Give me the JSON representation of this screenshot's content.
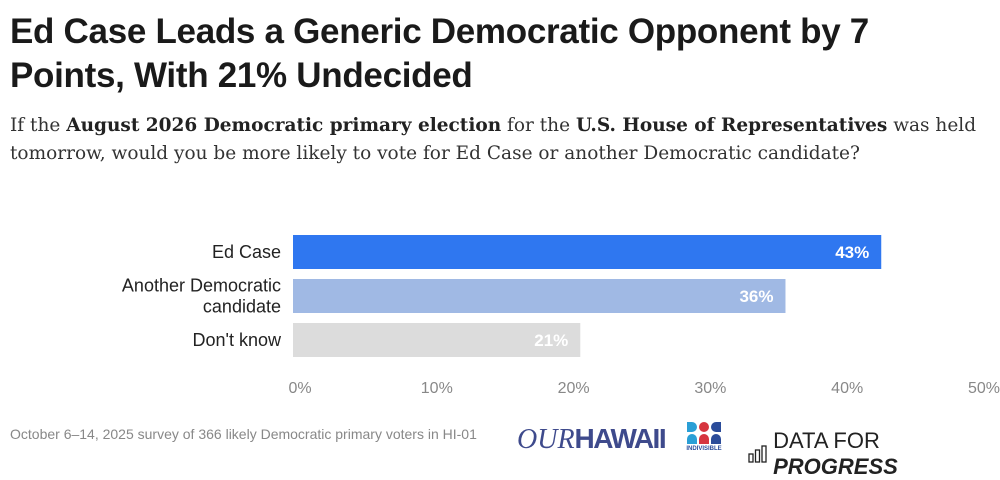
{
  "title": "Ed Case Leads a Generic Democratic Opponent by 7 Points, With 21% Undecided",
  "subtitle": {
    "parts": [
      {
        "text": "If the ",
        "bold": false
      },
      {
        "text": "August 2026 Democratic primary election",
        "bold": true
      },
      {
        "text": " for the ",
        "bold": false
      },
      {
        "text": "U.S. House of Representatives",
        "bold": true
      },
      {
        "text": " was held tomorrow, would you be more likely to vote for Ed Case or another Democratic candidate?",
        "bold": false
      }
    ]
  },
  "chart_data": {
    "type": "bar",
    "orientation": "horizontal",
    "categories": [
      "Ed Case",
      "Another Democratic candidate",
      "Don't know"
    ],
    "category_lines": [
      [
        "Ed Case"
      ],
      [
        "Another Democratic",
        "candidate"
      ],
      [
        "Don't know"
      ]
    ],
    "values": [
      43,
      36,
      21
    ],
    "value_labels": [
      "43%",
      "36%",
      "21%"
    ],
    "colors": [
      "#2f77f0",
      "#a0b9e4",
      "#dcdcdc"
    ],
    "xlim": [
      0,
      50
    ],
    "xticks": [
      0,
      10,
      20,
      30,
      40,
      50
    ],
    "xtick_labels": [
      "0%",
      "10%",
      "20%",
      "30%",
      "40%",
      "50%"
    ],
    "grid": false
  },
  "footnote": "October 6–14, 2025 survey of 366 likely Democratic primary voters in HI-01",
  "logos": {
    "our_hawaii": [
      "OUR",
      "HAWAII"
    ],
    "indivisible": "INDIVISIBLE",
    "data_for_progress": [
      "DATA FOR ",
      "PROGRESS"
    ]
  }
}
